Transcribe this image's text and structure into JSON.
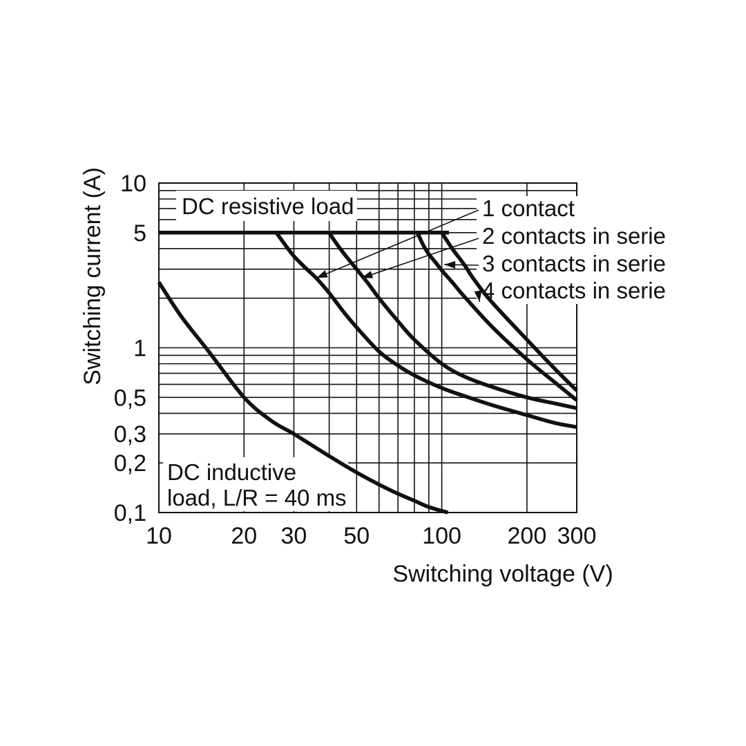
{
  "chart_data": {
    "type": "line",
    "x_scale": "log",
    "y_scale": "log",
    "xlim": [
      10,
      300
    ],
    "ylim": [
      0.1,
      10
    ],
    "xlabel": "Switching voltage (V)",
    "ylabel": "Switching current (A)",
    "x_ticks": [
      {
        "value": 10,
        "label": "10"
      },
      {
        "value": 20,
        "label": "20"
      },
      {
        "value": 30,
        "label": "30"
      },
      {
        "value": 50,
        "label": "50"
      },
      {
        "value": 100,
        "label": "100"
      },
      {
        "value": 200,
        "label": "200"
      },
      {
        "value": 300,
        "label": "300"
      }
    ],
    "y_ticks": [
      {
        "value": 10,
        "label": "10"
      },
      {
        "value": 5,
        "label": "5"
      },
      {
        "value": 1,
        "label": "1"
      },
      {
        "value": 0.5,
        "label": "0,5"
      },
      {
        "value": 0.3,
        "label": "0,3"
      },
      {
        "value": 0.2,
        "label": "0,2"
      },
      {
        "value": 0.1,
        "label": "0,1"
      }
    ],
    "x_grid": [
      20,
      30,
      40,
      50,
      60,
      70,
      80,
      90,
      100,
      200,
      300
    ],
    "y_grid": [
      0.2,
      0.3,
      0.4,
      0.5,
      0.6,
      0.7,
      0.8,
      0.9,
      1,
      2,
      3,
      4,
      5,
      6,
      7,
      8,
      9,
      10
    ],
    "grid": true,
    "annotations": [
      {
        "id": "resistive",
        "text": "DC resistive load"
      },
      {
        "id": "inductive-1",
        "text": "DC inductive"
      },
      {
        "id": "inductive-2",
        "text": "load, L/R = 40 ms"
      }
    ],
    "legend": [
      {
        "text": "1 contact",
        "arrow_to": {
          "x": 36,
          "y": 2.65
        }
      },
      {
        "text": "2 contacts in serie",
        "arrow_to": {
          "x": 52,
          "y": 2.65
        }
      },
      {
        "text": "3 contacts in serie",
        "arrow_to": {
          "x": 102,
          "y": 3.2
        }
      },
      {
        "text": "4 contacts in serie",
        "arrow_to": {
          "x": 136,
          "y": 1.9
        }
      }
    ],
    "series": [
      {
        "id": "dc-max",
        "x": [
          10,
          106
        ],
        "y": [
          5,
          5
        ]
      },
      {
        "id": "1-contact",
        "x": [
          26,
          28,
          30,
          33,
          36,
          40,
          45,
          50,
          60,
          70,
          80,
          100,
          120,
          150,
          200,
          250,
          300
        ],
        "y": [
          5,
          4.2,
          3.6,
          3.05,
          2.65,
          2.15,
          1.65,
          1.33,
          0.95,
          0.78,
          0.68,
          0.57,
          0.51,
          0.45,
          0.39,
          0.35,
          0.33
        ]
      },
      {
        "id": "2-contacts",
        "x": [
          40,
          42,
          45,
          50,
          55,
          60,
          70,
          80,
          100,
          120,
          150,
          200,
          250,
          300
        ],
        "y": [
          5,
          4.4,
          3.75,
          3.0,
          2.45,
          2.0,
          1.45,
          1.12,
          0.8,
          0.67,
          0.58,
          0.5,
          0.46,
          0.43
        ]
      },
      {
        "id": "3-contacts",
        "x": [
          82,
          86,
          90,
          95,
          100,
          110,
          120,
          150,
          200,
          250,
          300
        ],
        "y": [
          5,
          4.2,
          3.7,
          3.3,
          2.95,
          2.45,
          2.05,
          1.35,
          0.85,
          0.62,
          0.48
        ]
      },
      {
        "id": "4-contacts",
        "x": [
          100,
          104,
          110,
          120,
          130,
          150,
          200,
          250,
          300
        ],
        "y": [
          5,
          4.5,
          3.9,
          3.2,
          2.6,
          1.9,
          1.12,
          0.75,
          0.55
        ]
      },
      {
        "id": "dc-inductive",
        "x": [
          10,
          12,
          15,
          20,
          25,
          30,
          40,
          50,
          60,
          70,
          80,
          90,
          105
        ],
        "y": [
          2.5,
          1.55,
          0.95,
          0.5,
          0.36,
          0.3,
          0.22,
          0.175,
          0.148,
          0.13,
          0.118,
          0.108,
          0.1
        ]
      }
    ]
  }
}
